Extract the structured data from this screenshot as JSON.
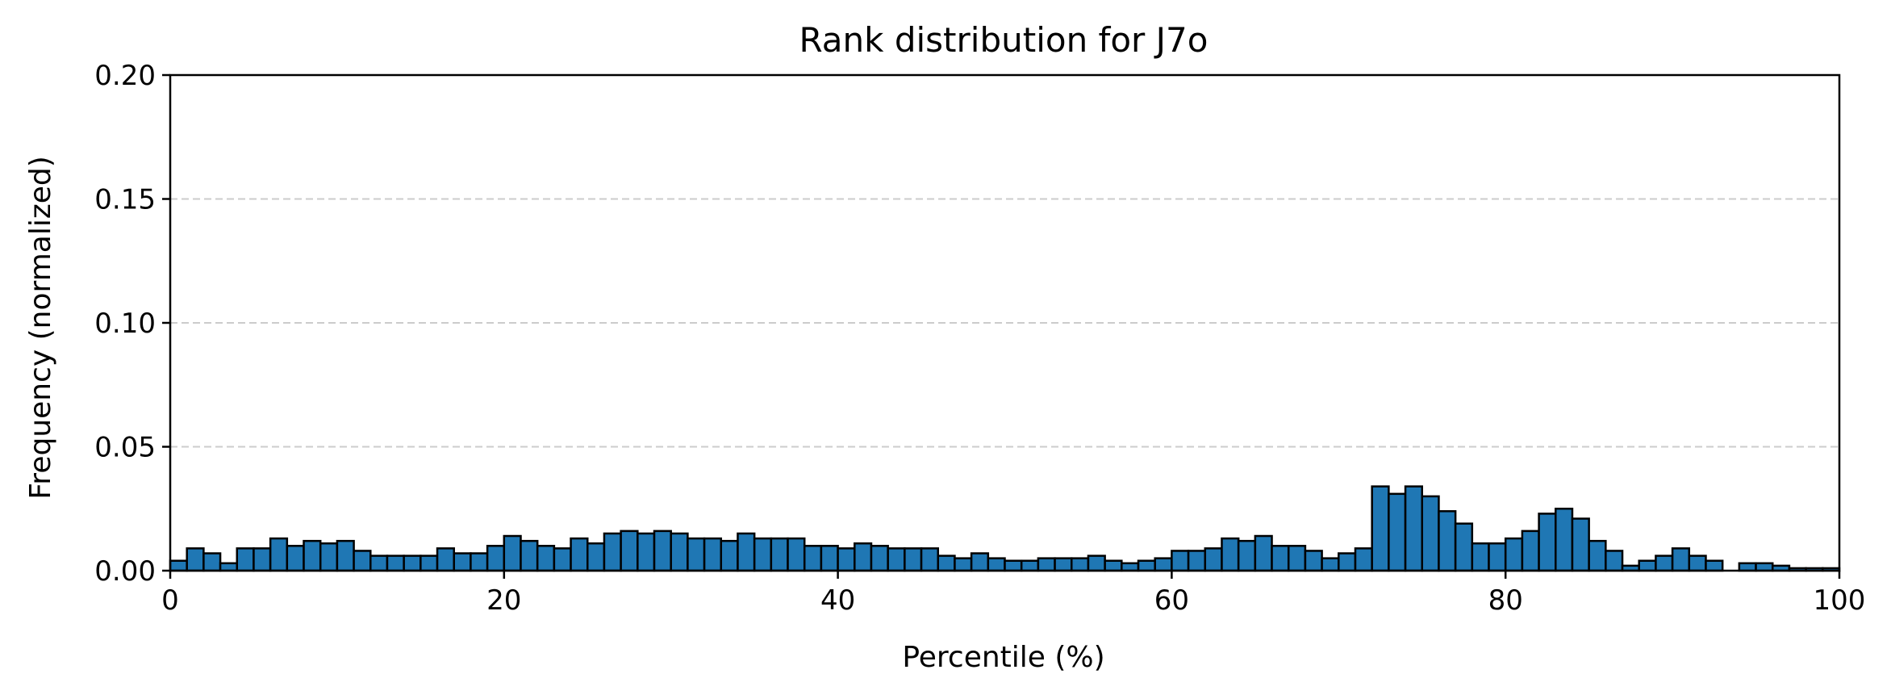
{
  "chart_data": {
    "type": "bar",
    "title": "Rank distribution for J7o",
    "xlabel": "Percentile (%)",
    "ylabel": "Frequency (normalized)",
    "xlim": [
      0,
      100
    ],
    "ylim": [
      0,
      0.2
    ],
    "xticks": [
      0,
      20,
      40,
      60,
      80,
      100
    ],
    "xtick_labels": [
      "0",
      "20",
      "40",
      "60",
      "80",
      "100"
    ],
    "yticks": [
      0,
      0.05,
      0.1,
      0.15,
      0.2
    ],
    "ytick_labels": [
      "0.00",
      "0.05",
      "0.10",
      "0.15",
      "0.20"
    ],
    "grid": "y-dashed",
    "bar_color": "#1f77b4",
    "edge_color": "#000000",
    "bin_start": 0,
    "bin_width": 1,
    "values": [
      0.004,
      0.009,
      0.007,
      0.003,
      0.009,
      0.009,
      0.013,
      0.01,
      0.012,
      0.011,
      0.012,
      0.008,
      0.006,
      0.006,
      0.006,
      0.006,
      0.009,
      0.007,
      0.007,
      0.01,
      0.014,
      0.012,
      0.01,
      0.009,
      0.013,
      0.011,
      0.015,
      0.016,
      0.015,
      0.016,
      0.015,
      0.013,
      0.013,
      0.012,
      0.015,
      0.013,
      0.013,
      0.013,
      0.01,
      0.01,
      0.009,
      0.011,
      0.01,
      0.009,
      0.009,
      0.009,
      0.006,
      0.005,
      0.007,
      0.005,
      0.004,
      0.004,
      0.005,
      0.005,
      0.005,
      0.006,
      0.004,
      0.003,
      0.004,
      0.005,
      0.008,
      0.008,
      0.009,
      0.013,
      0.012,
      0.014,
      0.01,
      0.01,
      0.008,
      0.005,
      0.007,
      0.009,
      0.034,
      0.031,
      0.034,
      0.03,
      0.024,
      0.019,
      0.011,
      0.011,
      0.013,
      0.016,
      0.023,
      0.025,
      0.021,
      0.012,
      0.008,
      0.002,
      0.004,
      0.006,
      0.009,
      0.006,
      0.004,
      0.0,
      0.003,
      0.003,
      0.002,
      0.001,
      0.001,
      0.001
    ]
  }
}
